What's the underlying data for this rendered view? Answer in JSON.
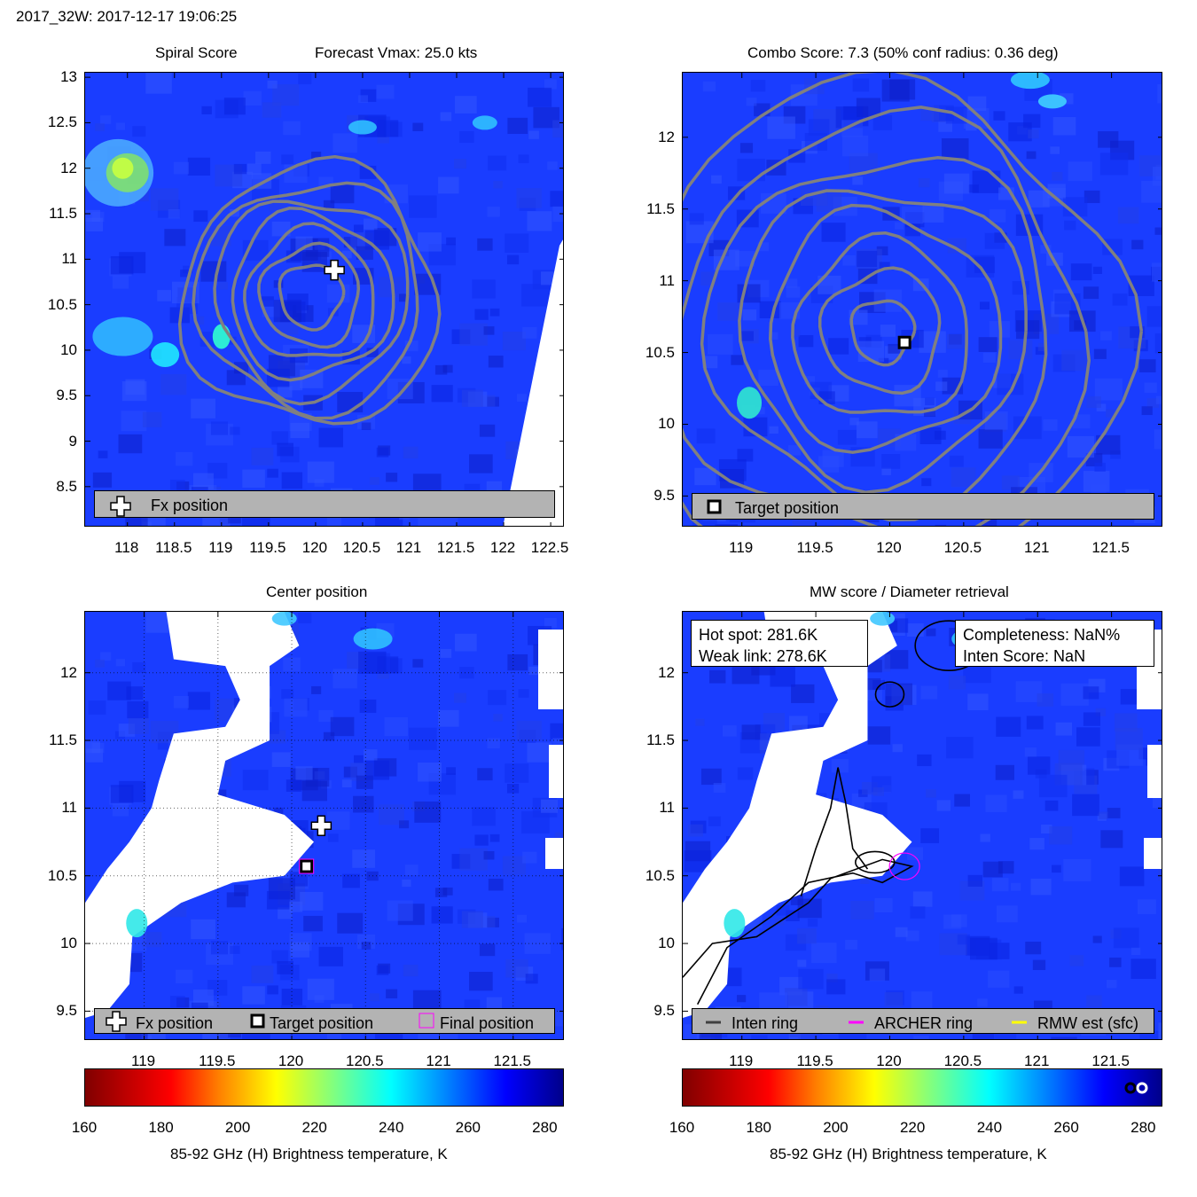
{
  "figure_title": "2017_32W: 2017-12-17 19:06:25",
  "colors": {
    "field": "#1a3dff",
    "legend_bg": "#b3b3b3",
    "contour": "#808080",
    "archer_ring": "#ff00ff"
  },
  "panels": {
    "spiral": {
      "title_left": "Spiral Score",
      "title_right": "Forecast Vmax: 25.0 kts",
      "legend": {
        "items": [
          {
            "icon": "fx-position-cross-icon",
            "label": "Fx position"
          }
        ]
      }
    },
    "combo": {
      "title": "Combo Score: 7.3  (50% conf radius: 0.36 deg)",
      "legend": {
        "items": [
          {
            "icon": "target-position-square-icon",
            "label": "Target position"
          }
        ]
      }
    },
    "center": {
      "title": "Center position",
      "legend": {
        "items": [
          {
            "icon": "fx-position-cross-icon",
            "label": "Fx position"
          },
          {
            "icon": "target-position-square-icon",
            "label": "Target position"
          },
          {
            "icon": "final-position-square-icon",
            "label": "Final position"
          }
        ]
      }
    },
    "mw": {
      "title": "MW score / Diameter retrieval",
      "hot_spot": "Hot spot: 281.6K",
      "weak_link": "Weak link: 278.6K",
      "completeness": "Completeness: NaN%",
      "inten_score": "Inten Score: NaN",
      "legend": {
        "items": [
          {
            "icon": "inten-ring-line-icon",
            "label": "Inten ring",
            "color": "#404040"
          },
          {
            "icon": "archer-ring-line-icon",
            "label": "ARCHER ring",
            "color": "#ff00ff"
          },
          {
            "icon": "rmw-est-line-icon",
            "label": "RMW est (sfc)",
            "color": "#ffff00"
          }
        ]
      }
    }
  },
  "chart_data": [
    {
      "type": "heatmap",
      "panel": "spiral",
      "title": "Spiral Score",
      "annotation": "Forecast Vmax: 25.0 kts",
      "xlabel": "",
      "ylabel": "",
      "xlim": [
        117.55,
        122.65
      ],
      "ylim": [
        8.05,
        13.05
      ],
      "x_ticks": [
        118,
        118.5,
        119,
        119.5,
        120,
        120.5,
        121,
        121.5,
        122,
        122.5
      ],
      "x_tick_labels": [
        "118",
        "118.5",
        "119",
        "119.5",
        "120",
        "120.5",
        "121",
        "121.5",
        "122",
        "122.5"
      ],
      "y_ticks": [
        8.5,
        9,
        9.5,
        10,
        10.5,
        11,
        11.5,
        12,
        12.5,
        13
      ],
      "y_tick_labels": [
        "8.5",
        "9",
        "9.5",
        "10",
        "10.5",
        "11",
        "11.5",
        "12",
        "12.5",
        "13"
      ],
      "markers": [
        {
          "name": "Fx position",
          "x": 120.2,
          "y": 10.88,
          "symbol": "cross"
        }
      ],
      "contour_center": {
        "x": 119.95,
        "y": 10.6
      },
      "contour_radii_deg": [
        0.35,
        0.55,
        0.72,
        0.9,
        1.08,
        1.25,
        1.42
      ],
      "legend": "bottom"
    },
    {
      "type": "heatmap",
      "panel": "combo",
      "title": "Combo Score: 7.3  (50% conf radius: 0.36 deg)",
      "xlabel": "",
      "ylabel": "",
      "xlim": [
        118.6,
        121.85
      ],
      "ylim": [
        9.28,
        12.45
      ],
      "x_ticks": [
        119,
        119.5,
        120,
        120.5,
        121,
        121.5
      ],
      "x_tick_labels": [
        "119",
        "119.5",
        "120",
        "120.5",
        "121",
        "121.5"
      ],
      "y_ticks": [
        9.5,
        10,
        10.5,
        11,
        11.5,
        12
      ],
      "y_tick_labels": [
        "9.5",
        "10",
        "10.5",
        "11",
        "11.5",
        "12"
      ],
      "markers": [
        {
          "name": "Target position",
          "x": 120.1,
          "y": 10.57,
          "symbol": "square"
        }
      ],
      "contour_center": {
        "x": 119.95,
        "y": 10.65
      },
      "contour_radii_deg": [
        0.22,
        0.42,
        0.62,
        0.82,
        1.02,
        1.22,
        1.45,
        1.7
      ],
      "legend": "bottom"
    },
    {
      "type": "heatmap",
      "panel": "center",
      "title": "Center position",
      "xlabel": "",
      "ylabel": "",
      "xlim": [
        118.6,
        121.85
      ],
      "ylim": [
        9.28,
        12.45
      ],
      "x_ticks": [
        119,
        119.5,
        120,
        120.5,
        121,
        121.5
      ],
      "x_tick_labels": [
        "119",
        "119.5",
        "120",
        "120.5",
        "121",
        "121.5"
      ],
      "y_ticks": [
        9.5,
        10,
        10.5,
        11,
        11.5,
        12
      ],
      "y_tick_labels": [
        "9.5",
        "10",
        "10.5",
        "11",
        "11.5",
        "12"
      ],
      "grid": true,
      "markers": [
        {
          "name": "Fx position",
          "x": 120.2,
          "y": 10.87,
          "symbol": "cross"
        },
        {
          "name": "Target position",
          "x": 120.1,
          "y": 10.57,
          "symbol": "square"
        },
        {
          "name": "Final position",
          "x": 120.1,
          "y": 10.57,
          "symbol": "magenta-square"
        }
      ],
      "colorbar": {
        "label": "85-92 GHz (H) Brightness temperature, K",
        "range": [
          160,
          285
        ],
        "ticks": [
          160,
          180,
          200,
          220,
          240,
          260,
          280
        ],
        "tick_labels": [
          "160",
          "180",
          "200",
          "220",
          "240",
          "260",
          "280"
        ]
      },
      "legend": "bottom"
    },
    {
      "type": "heatmap",
      "panel": "mw",
      "title": "MW score / Diameter retrieval",
      "xlabel": "",
      "ylabel": "",
      "xlim": [
        118.6,
        121.85
      ],
      "ylim": [
        9.28,
        12.45
      ],
      "x_ticks": [
        119,
        119.5,
        120,
        120.5,
        121,
        121.5
      ],
      "x_tick_labels": [
        "119",
        "119.5",
        "120",
        "120.5",
        "121",
        "121.5"
      ],
      "y_ticks": [
        9.5,
        10,
        10.5,
        11,
        11.5,
        12
      ],
      "y_tick_labels": [
        "9.5",
        "10",
        "10.5",
        "11",
        "11.5",
        "12"
      ],
      "markers": [
        {
          "name": "ARCHER ring",
          "x": 120.1,
          "y": 10.57,
          "symbol": "magenta-circle"
        }
      ],
      "colorbar": {
        "label": "85-92 GHz (H) Brightness temperature, K",
        "range": [
          160,
          285
        ],
        "ticks": [
          160,
          180,
          200,
          220,
          240,
          260,
          280
        ],
        "tick_labels": [
          "160",
          "180",
          "200",
          "220",
          "240",
          "260",
          "280"
        ]
      },
      "legend": "bottom"
    }
  ]
}
